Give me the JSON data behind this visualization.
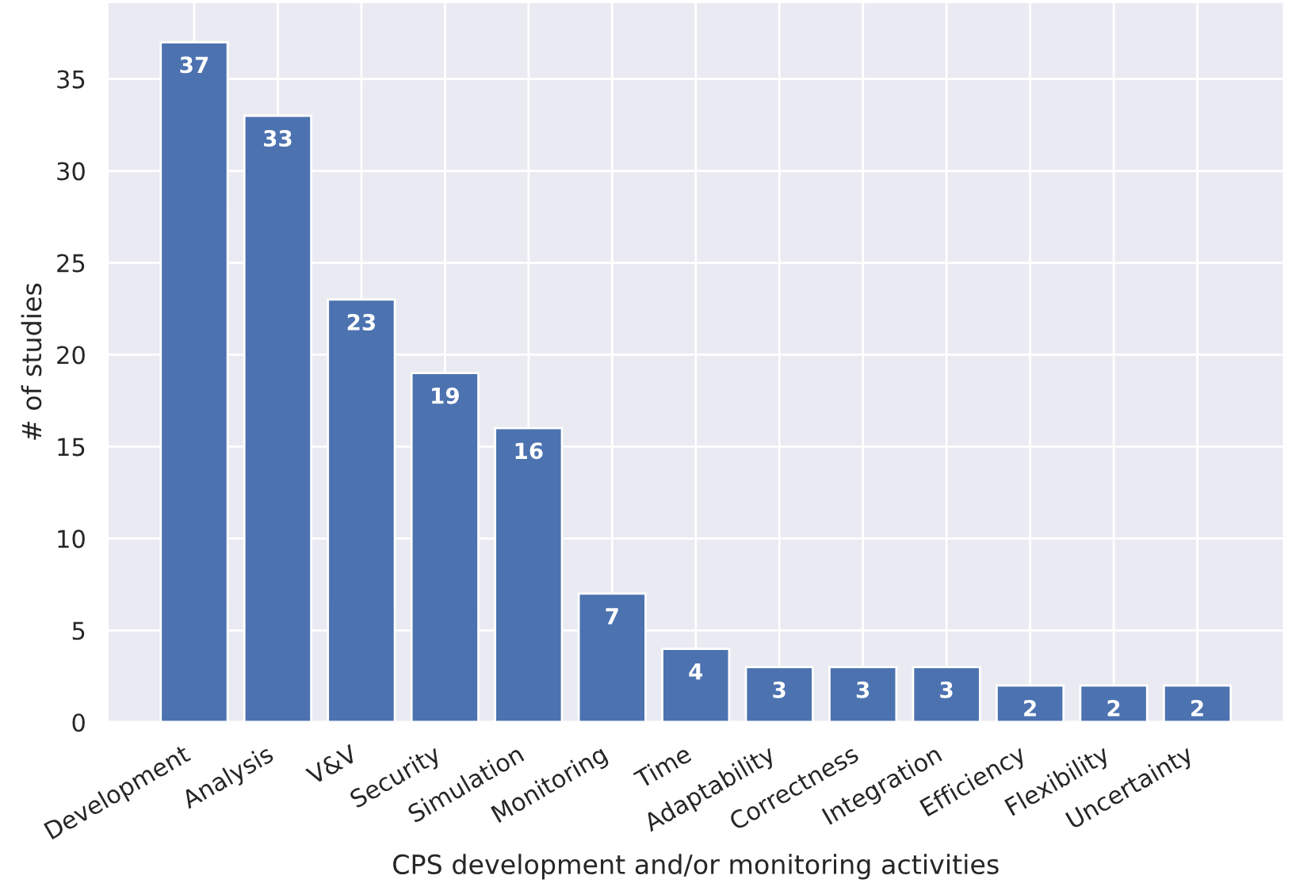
{
  "chart_data": {
    "type": "bar",
    "xlabel": "CPS development and/or monitoring activities",
    "ylabel": "# of studies",
    "categories": [
      "Development",
      "Analysis",
      "V&V",
      "Security",
      "Simulation",
      "Monitoring",
      "Time",
      "Adaptability",
      "Correctness",
      "Integration",
      "Efficiency",
      "Flexibility",
      "Uncertainty"
    ],
    "values": [
      37,
      33,
      23,
      19,
      16,
      7,
      4,
      3,
      3,
      3,
      2,
      2,
      2
    ],
    "color": "#4c72b0",
    "ylim": [
      0,
      39.2
    ],
    "yticks": [
      0,
      5,
      10,
      15,
      20,
      25,
      30,
      35
    ],
    "grid": true,
    "data_labels": true
  }
}
